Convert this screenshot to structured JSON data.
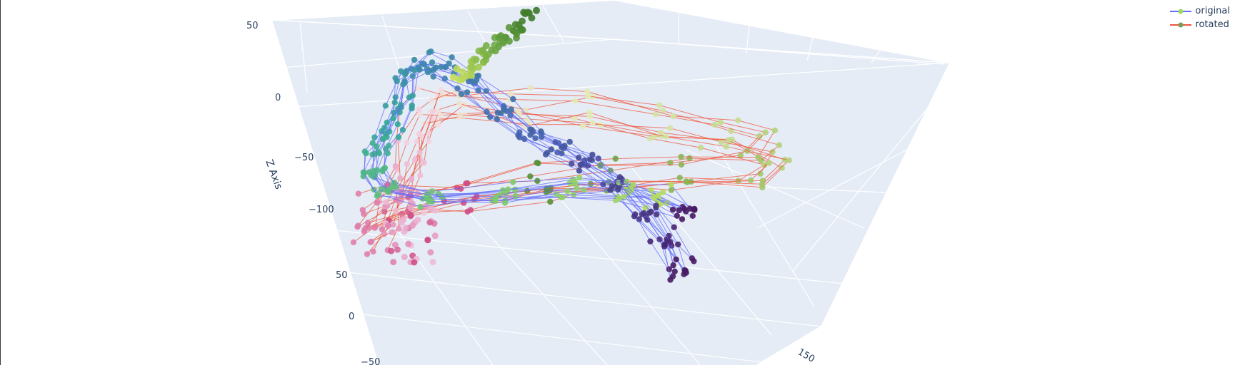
{
  "chart_data": {
    "type": "scatter3d",
    "zaxis": {
      "title": "Z Axis",
      "ticks": [
        "50",
        "0",
        "−50",
        "−100"
      ]
    },
    "yaxis": {
      "ticks": [
        "50",
        "0",
        "−50"
      ]
    },
    "xaxis": {
      "ticks": [
        "150"
      ]
    },
    "series": [
      {
        "name": "original",
        "line_color": "#636efa",
        "marker_scale": "Viridis"
      },
      {
        "name": "rotated",
        "line_color": "#ef553b",
        "marker_scale": "PiYG"
      }
    ],
    "grid": true,
    "legend_position": "top-right"
  }
}
